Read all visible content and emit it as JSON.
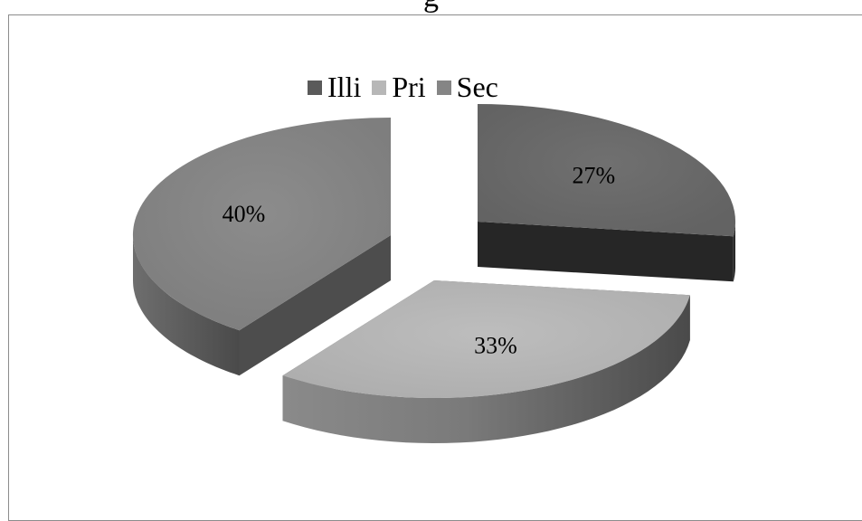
{
  "header": {
    "top_text": "g"
  },
  "colors": {
    "Illi": "#6e6e6e",
    "Pri": "#b7b7b7",
    "Sec": "#858585"
  },
  "chart_data": {
    "type": "pie",
    "title": "",
    "legend_position": "top",
    "categories": [
      "Illi",
      "Pri",
      "Sec"
    ],
    "values": [
      27,
      33,
      40
    ],
    "labels": [
      "27%",
      "33%",
      "40%"
    ]
  }
}
